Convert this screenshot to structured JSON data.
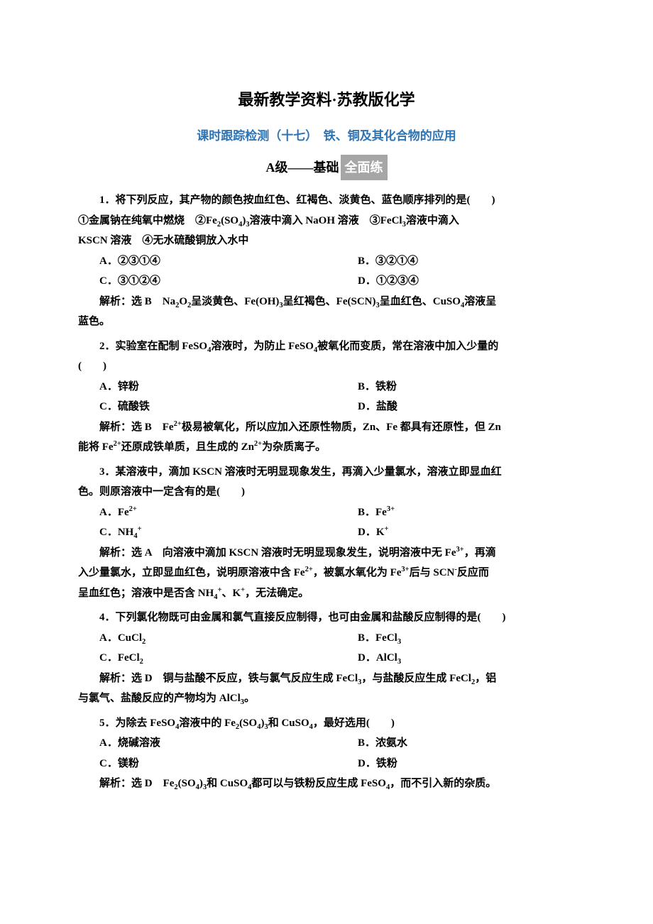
{
  "colors": {
    "text": "#000000",
    "background": "#ffffff",
    "section_title": "#2e74b5",
    "badge_bg": "#a6a6a6",
    "badge_text": "#ffffff"
  },
  "typography": {
    "body_fontsize": 15,
    "title_fontsize": 22,
    "section_fontsize": 17,
    "level_fontsize": 18,
    "body_font": "SimSun",
    "explanation_font": "KaiTi"
  },
  "doc_title": "最新教学资料·苏教版化学",
  "section_title": "课时跟踪检测（十七）　铁、铜及其化合物的应用",
  "level": {
    "label": "A级",
    "dash": "——",
    "text": "基础",
    "badge": "全面练"
  },
  "questions": [
    {
      "stem_parts": [
        "1．将下列反应，其产物的颜色按血红色、红褐色、淡黄色、蓝色顺序排列的是(　　)",
        "①金属钠在纯氧中燃烧　②Fe₂(SO₄)₃溶液中滴入 NaOH 溶液　③FeCl₃溶液中滴入",
        "KSCN 溶液　④无水硫酸铜放入水中"
      ],
      "options": [
        {
          "left": "A．②③①④",
          "right": "B．③②①④"
        },
        {
          "left": "C．③①②④",
          "right": "D．①②③④"
        }
      ],
      "explanation_parts": [
        "解析：选 B　Na₂O₂呈淡黄色、Fe(OH)₃呈红褐色、Fe(SCN)₃呈血红色、CuSO₄溶液呈",
        "蓝色。"
      ]
    },
    {
      "stem_parts": [
        "2．实验室在配制 FeSO₄溶液时，为防止 FeSO₄被氧化而变质，常在溶液中加入少量的",
        "(　　)"
      ],
      "options": [
        {
          "left": "A．锌粉",
          "right": "B．铁粉"
        },
        {
          "left": "C．硫酸铁",
          "right": "D．盐酸"
        }
      ],
      "explanation_parts": [
        "解析：选 B　Fe²⁺极易被氧化，所以应加入还原性物质，Zn、Fe 都具有还原性，但 Zn",
        "能将 Fe²⁺还原成铁单质，且生成的 Zn²⁺为杂质离子。"
      ]
    },
    {
      "stem_parts": [
        "3．某溶液中，滴加 KSCN 溶液时无明显现象发生，再滴入少量氯水，溶液立即显血红",
        "色。则原溶液中一定含有的是(　　)"
      ],
      "options": [
        {
          "left": "A．Fe²⁺",
          "right": "B．Fe³⁺"
        },
        {
          "left": "C．NH₄⁺",
          "right": "D．K⁺"
        }
      ],
      "explanation_parts": [
        "解析：选 A　向溶液中滴加 KSCN 溶液时无明显现象发生，说明溶液中无 Fe³⁺，再滴",
        "入少量氯水，立即显血红色，说明原溶液中含 Fe²⁺，被氯水氧化为 Fe³⁺后与 SCN⁻反应而",
        "呈血红色；溶液中是否含 NH₄⁺、K⁺，无法确定。"
      ]
    },
    {
      "stem_parts": [
        "4．下列氯化物既可由金属和氯气直接反应制得，也可由金属和盐酸反应制得的是(　　)"
      ],
      "options": [
        {
          "left": "A．CuCl₂",
          "right": "B．FeCl₃"
        },
        {
          "left": "C．FeCl₂",
          "right": "D．AlCl₃"
        }
      ],
      "explanation_parts": [
        "解析：选 D　铜与盐酸不反应，铁与氯气反应生成 FeCl₃，与盐酸反应生成 FeCl₂，铝",
        "与氯气、盐酸反应的产物均为 AlCl₃。"
      ]
    },
    {
      "stem_parts": [
        "5．为除去 FeSO₄溶液中的 Fe₂(SO₄)₃和 CuSO₄，最好选用(　　)"
      ],
      "options": [
        {
          "left": "A．烧碱溶液",
          "right": "B．浓氨水"
        },
        {
          "left": "C．镁粉",
          "right": "D．铁粉"
        }
      ],
      "explanation_parts": [
        "解析：选 D　Fe₂(SO₄)₃和 CuSO₄都可以与铁粉反应生成 FeSO₄，而不引入新的杂质。"
      ]
    }
  ]
}
